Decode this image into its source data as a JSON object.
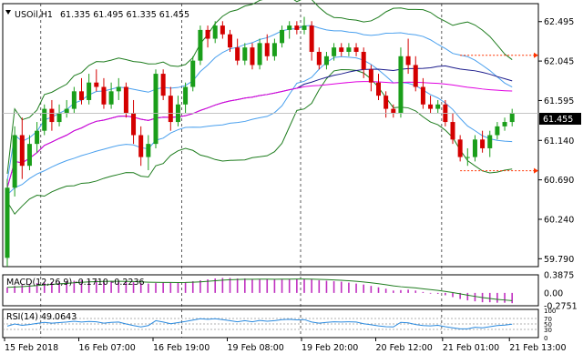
{
  "header": {
    "symbol": "USOil,H1",
    "ohlc": "61.335 61.495 61.335 61.455"
  },
  "price_panel": {
    "ticks": [
      "62.495",
      "62.045",
      "61.595",
      "61.140",
      "60.690",
      "60.240",
      "59.790"
    ],
    "current_price": "61.455",
    "colors": {
      "bull": "#1a9e1a",
      "bear": "#d40000",
      "bollinger": "#1f7d1f",
      "inner_band": "#4aa0ee",
      "ma_fast": "#1c1c8c",
      "ma_slow": "#e000e0",
      "marker": "#ff3300"
    }
  },
  "macd_panel": {
    "label": "MACD(12,26,9) -0.1710 -0.2236",
    "ticks": [
      "0.3875",
      "0.00",
      "-0.2751"
    ]
  },
  "rsi_panel": {
    "label": "RSI(14) 49.0643",
    "ticks": [
      "100",
      "70",
      "50",
      "30",
      "0"
    ]
  },
  "time_axis": [
    "15 Feb 2018",
    "16 Feb 07:00",
    "16 Feb 19:00",
    "19 Feb 08:00",
    "19 Feb 20:00",
    "20 Feb 12:00",
    "21 Feb 01:00",
    "21 Feb 13:00"
  ],
  "chart_data": {
    "type": "candlestick",
    "title": "USOil,H1",
    "ylim": [
      59.7,
      62.7
    ],
    "candles": [
      [
        59.8,
        60.7,
        59.7,
        60.6
      ],
      [
        60.6,
        61.3,
        60.5,
        61.2
      ],
      [
        61.2,
        61.4,
        60.7,
        60.85
      ],
      [
        60.85,
        61.2,
        60.8,
        61.1
      ],
      [
        61.1,
        61.35,
        61.0,
        61.25
      ],
      [
        61.25,
        61.55,
        61.2,
        61.5
      ],
      [
        61.5,
        61.6,
        61.25,
        61.35
      ],
      [
        61.35,
        61.55,
        61.3,
        61.45
      ],
      [
        61.45,
        61.6,
        61.4,
        61.5
      ],
      [
        61.5,
        61.75,
        61.45,
        61.7
      ],
      [
        61.7,
        61.85,
        61.55,
        61.6
      ],
      [
        61.6,
        61.9,
        61.55,
        61.8
      ],
      [
        61.8,
        61.95,
        61.7,
        61.75
      ],
      [
        61.75,
        61.85,
        61.5,
        61.55
      ],
      [
        61.55,
        61.8,
        61.5,
        61.7
      ],
      [
        61.7,
        61.85,
        61.6,
        61.75
      ],
      [
        61.75,
        61.8,
        61.4,
        61.45
      ],
      [
        61.45,
        61.6,
        61.1,
        61.2
      ],
      [
        61.2,
        61.3,
        60.85,
        60.95
      ],
      [
        60.95,
        61.2,
        60.8,
        61.1
      ],
      [
        61.1,
        61.95,
        61.05,
        61.9
      ],
      [
        61.9,
        61.95,
        61.6,
        61.65
      ],
      [
        61.65,
        61.75,
        61.25,
        61.35
      ],
      [
        61.35,
        61.65,
        61.3,
        61.55
      ],
      [
        61.55,
        61.8,
        61.45,
        61.75
      ],
      [
        61.75,
        62.1,
        61.7,
        62.05
      ],
      [
        62.05,
        62.45,
        62.0,
        62.4
      ],
      [
        62.4,
        62.45,
        62.2,
        62.3
      ],
      [
        62.3,
        62.5,
        62.25,
        62.45
      ],
      [
        62.45,
        62.5,
        62.3,
        62.35
      ],
      [
        62.35,
        62.4,
        62.15,
        62.2
      ],
      [
        62.2,
        62.3,
        62.0,
        62.05
      ],
      [
        62.05,
        62.25,
        62.0,
        62.2
      ],
      [
        62.2,
        62.25,
        61.95,
        62.0
      ],
      [
        62.0,
        62.3,
        61.95,
        62.25
      ],
      [
        62.25,
        62.35,
        62.05,
        62.1
      ],
      [
        62.1,
        62.3,
        62.05,
        62.25
      ],
      [
        62.25,
        62.45,
        62.2,
        62.4
      ],
      [
        62.4,
        62.5,
        62.3,
        62.45
      ],
      [
        62.45,
        62.5,
        62.35,
        62.4
      ],
      [
        62.4,
        62.55,
        62.35,
        62.45
      ],
      [
        62.45,
        62.5,
        62.05,
        62.15
      ],
      [
        62.15,
        62.2,
        61.95,
        62.0
      ],
      [
        62.0,
        62.15,
        61.95,
        62.1
      ],
      [
        62.1,
        62.25,
        62.05,
        62.2
      ],
      [
        62.2,
        62.25,
        62.1,
        62.15
      ],
      [
        62.15,
        62.25,
        62.1,
        62.2
      ],
      [
        62.2,
        62.25,
        62.1,
        62.15
      ],
      [
        62.15,
        62.2,
        61.85,
        61.95
      ],
      [
        61.95,
        62.0,
        61.7,
        61.8
      ],
      [
        61.8,
        61.9,
        61.6,
        61.65
      ],
      [
        61.65,
        61.7,
        61.4,
        61.5
      ],
      [
        61.5,
        61.55,
        61.4,
        61.45
      ],
      [
        61.45,
        62.2,
        61.4,
        62.1
      ],
      [
        62.1,
        62.3,
        61.9,
        62.0
      ],
      [
        62.0,
        62.1,
        61.7,
        61.75
      ],
      [
        61.75,
        61.85,
        61.5,
        61.55
      ],
      [
        61.55,
        61.65,
        61.45,
        61.5
      ],
      [
        61.5,
        61.6,
        61.45,
        61.55
      ],
      [
        61.55,
        61.6,
        61.3,
        61.35
      ],
      [
        61.35,
        61.45,
        61.1,
        61.15
      ],
      [
        61.15,
        61.2,
        60.9,
        60.95
      ],
      [
        60.95,
        61.05,
        60.85,
        60.95
      ],
      [
        60.95,
        61.2,
        60.9,
        61.15
      ],
      [
        61.15,
        61.25,
        61.0,
        61.05
      ],
      [
        61.05,
        61.25,
        60.95,
        61.2
      ],
      [
        61.2,
        61.35,
        61.15,
        61.3
      ],
      [
        61.3,
        61.4,
        61.25,
        61.35
      ],
      [
        61.35,
        61.5,
        61.3,
        61.45
      ]
    ],
    "bollinger_window": 20,
    "ma_fast_period": 40,
    "ma_slow_period": 100,
    "macd_values": [
      0.12,
      0.15,
      0.17,
      0.19,
      0.21,
      0.22,
      0.23,
      0.24,
      0.25,
      0.26,
      0.27,
      0.27,
      0.27,
      0.26,
      0.26,
      0.25,
      0.24,
      0.23,
      0.21,
      0.2,
      0.21,
      0.22,
      0.22,
      0.22,
      0.23,
      0.25,
      0.27,
      0.29,
      0.31,
      0.32,
      0.32,
      0.31,
      0.31,
      0.3,
      0.3,
      0.29,
      0.29,
      0.3,
      0.3,
      0.3,
      0.3,
      0.29,
      0.27,
      0.26,
      0.25,
      0.24,
      0.22,
      0.2,
      0.18,
      0.15,
      0.12,
      0.09,
      0.05,
      0.06,
      0.07,
      0.05,
      0.02,
      0.0,
      -0.02,
      -0.05,
      -0.09,
      -0.13,
      -0.16,
      -0.18,
      -0.2,
      -0.2,
      -0.21,
      -0.21,
      -0.22
    ],
    "rsi_values": [
      42,
      50,
      45,
      48,
      52,
      56,
      53,
      55,
      57,
      60,
      57,
      59,
      58,
      53,
      56,
      57,
      50,
      44,
      39,
      44,
      62,
      57,
      51,
      55,
      59,
      64,
      69,
      67,
      69,
      66,
      62,
      58,
      62,
      58,
      63,
      60,
      62,
      66,
      67,
      65,
      66,
      57,
      53,
      56,
      58,
      57,
      58,
      57,
      51,
      47,
      43,
      40,
      39,
      56,
      54,
      48,
      44,
      43,
      45,
      40,
      36,
      32,
      32,
      38,
      36,
      40,
      44,
      46,
      49
    ]
  }
}
